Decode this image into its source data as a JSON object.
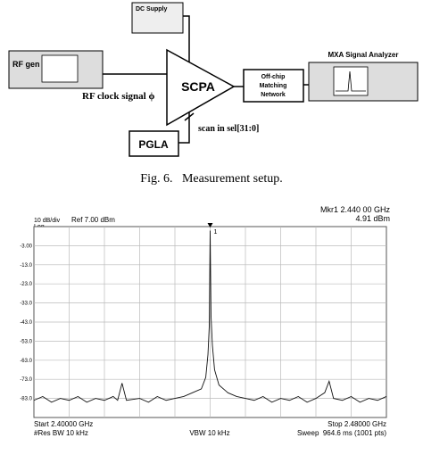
{
  "diagram": {
    "dc_supply": "DC Supply",
    "rf_gen": "RF gen",
    "rf_clock": "RF clock signal ϕ",
    "scpa": "SCPA",
    "matching": [
      "Off-chip",
      "Matching",
      "Network"
    ],
    "analyzer": "MXA Signal Analyzer",
    "scan": "scan in sel[31:0]",
    "pgla": "PGLA",
    "caption": "Fig. 6.   Measurement setup."
  },
  "chart_data": {
    "type": "line",
    "header": {
      "scale": "10 dB/div",
      "ref": "Ref 7.00 dBm",
      "log": "Log",
      "marker": "Mkr1 2.440 00 GHz",
      "marker_value": "4.91 dBm"
    },
    "footer": {
      "start": "Start 2.40000 GHz",
      "rbw": "#Res BW 10 kHz",
      "vbw": "VBW 10 kHz",
      "stop": "Stop 2.48000 GHz",
      "sweep": "Sweep  964.6 ms (1001 pts)"
    },
    "marker_label": "1",
    "marker_x": 2.44,
    "xlim": [
      2.4,
      2.48
    ],
    "xticks": [
      2.408,
      2.416,
      2.424,
      2.432,
      2.44,
      2.448,
      2.456,
      2.464,
      2.472
    ],
    "ylim": [
      -93,
      7
    ],
    "yticks": [
      {
        "value": -3,
        "label": "-3.00"
      },
      {
        "value": -13,
        "label": "-13.0"
      },
      {
        "value": -23,
        "label": "-23.0"
      },
      {
        "value": -33,
        "label": "-33.0"
      },
      {
        "value": -43,
        "label": "-43.0"
      },
      {
        "value": -53,
        "label": "-53.0"
      },
      {
        "value": -63,
        "label": "-63.0"
      },
      {
        "value": -73,
        "label": "-73.0"
      },
      {
        "value": -83,
        "label": "-83.0"
      }
    ],
    "grid": true,
    "x": [
      2.4,
      2.402,
      2.404,
      2.406,
      2.408,
      2.41,
      2.412,
      2.414,
      2.416,
      2.418,
      2.419,
      2.42,
      2.421,
      2.424,
      2.426,
      2.428,
      2.43,
      2.432,
      2.434,
      2.436,
      2.438,
      2.439,
      2.4395,
      2.4398,
      2.44,
      2.4402,
      2.4405,
      2.441,
      2.442,
      2.444,
      2.446,
      2.448,
      2.45,
      2.452,
      2.454,
      2.456,
      2.458,
      2.46,
      2.462,
      2.464,
      2.466,
      2.467,
      2.468,
      2.47,
      2.472,
      2.474,
      2.476,
      2.478,
      2.48
    ],
    "series": [
      {
        "color": "#111111",
        "values": [
          -84,
          -82,
          -85,
          -83,
          -84,
          -82,
          -85,
          -83,
          -84,
          -82,
          -84,
          -75,
          -84,
          -83,
          -85,
          -82,
          -84,
          -83,
          -82,
          -80,
          -78,
          -72,
          -60,
          -45,
          4.91,
          -40,
          -55,
          -68,
          -76,
          -80,
          -82,
          -83,
          -84,
          -82,
          -85,
          -83,
          -84,
          -82,
          -85,
          -83,
          -80,
          -74,
          -83,
          -84,
          -82,
          -85,
          -83,
          -84,
          -82
        ]
      }
    ]
  }
}
